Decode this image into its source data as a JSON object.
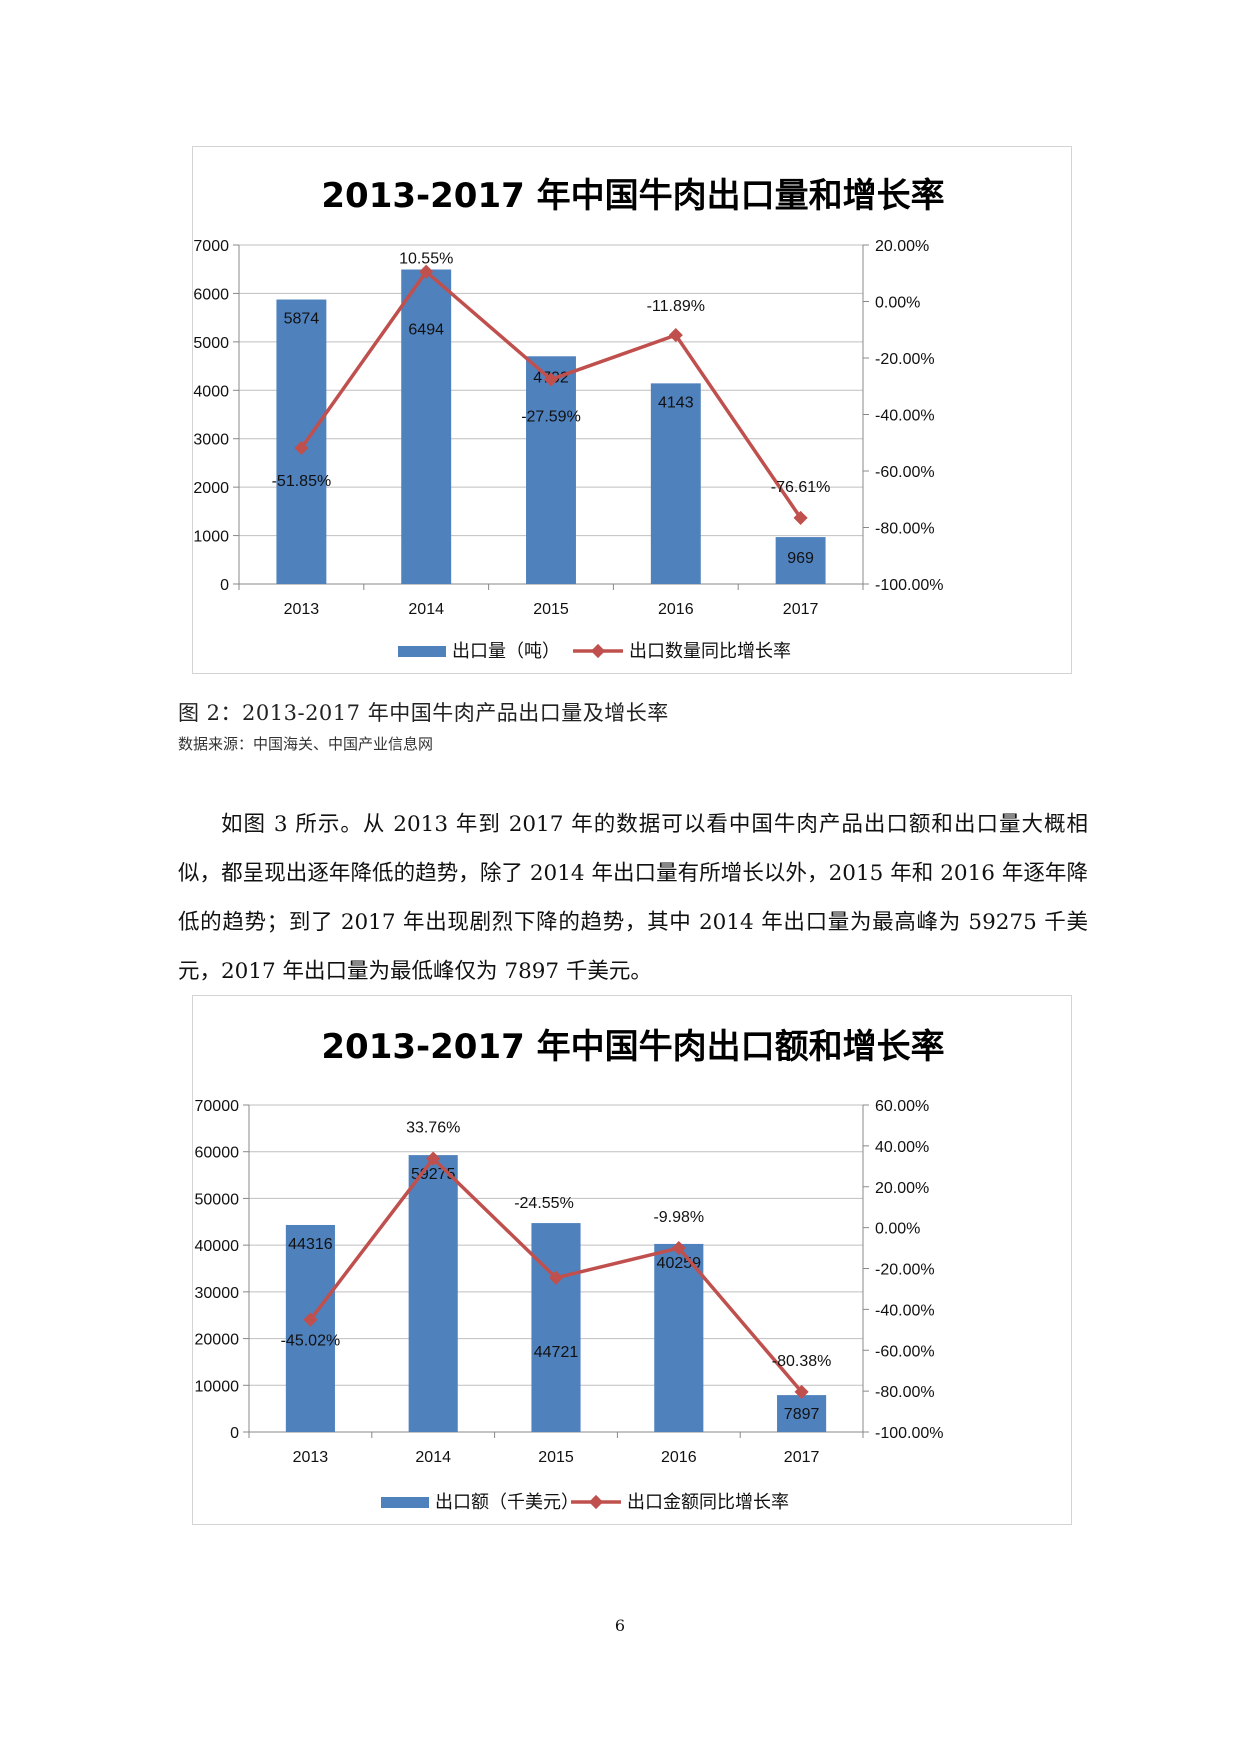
{
  "charts": [
    {
      "title": "2013-2017 年中国牛肉出口量和增长率",
      "legend": [
        "出口量（吨）",
        "出口数量同比增长率"
      ]
    },
    {
      "title": "2013-2017 年中国牛肉出口额和增长率",
      "legend": [
        "出口额（千美元）",
        "出口金额同比增长率"
      ]
    }
  ],
  "chart_data": [
    {
      "type": "bar",
      "title": "2013-2017 年中国牛肉出口量和增长率",
      "categories": [
        "2013",
        "2014",
        "2015",
        "2016",
        "2017"
      ],
      "series": [
        {
          "name": "出口量（吨）",
          "type": "bar",
          "axis": "left",
          "values": [
            5874,
            6494,
            4702,
            4143,
            969
          ],
          "labels": [
            "5874",
            "6494",
            "4702",
            "4143",
            "969"
          ],
          "color": "#4f81bd"
        },
        {
          "name": "出口数量同比增长率",
          "type": "line",
          "axis": "right",
          "values": [
            -51.85,
            10.55,
            -27.59,
            -11.89,
            -76.61
          ],
          "labels": [
            "-51.85%",
            "10.55%",
            "-27.59%",
            "-11.89%",
            "-76.61%"
          ],
          "color": "#c0504d"
        }
      ],
      "y_left": {
        "min": 0,
        "max": 7000,
        "step": 1000,
        "ticks": [
          "0",
          "1000",
          "2000",
          "3000",
          "4000",
          "5000",
          "6000",
          "7000"
        ]
      },
      "y_right": {
        "min": -100,
        "max": 20,
        "step": 20,
        "ticks": [
          "-100.00%",
          "-80.00%",
          "-60.00%",
          "-40.00%",
          "-20.00%",
          "0.00%",
          "20.00%"
        ]
      },
      "grid": true,
      "legend_position": "bottom"
    },
    {
      "type": "bar",
      "title": "2013-2017 年中国牛肉出口额和增长率",
      "categories": [
        "2013",
        "2014",
        "2015",
        "2016",
        "2017"
      ],
      "series": [
        {
          "name": "出口额（千美元）",
          "type": "bar",
          "axis": "left",
          "values": [
            44316,
            59275,
            44721,
            40259,
            7897
          ],
          "labels": [
            "44316",
            "59275",
            "44721",
            "40259",
            "7897"
          ],
          "color": "#4f81bd"
        },
        {
          "name": "出口金额同比增长率",
          "type": "line",
          "axis": "right",
          "values": [
            -45.02,
            33.76,
            -24.55,
            -9.98,
            -80.38
          ],
          "labels": [
            "-45.02%",
            "33.76%",
            "-24.55%",
            "-9.98%",
            "-80.38%"
          ],
          "color": "#c0504d"
        }
      ],
      "y_left": {
        "min": 0,
        "max": 70000,
        "step": 10000,
        "ticks": [
          "0",
          "10000",
          "20000",
          "30000",
          "40000",
          "50000",
          "60000",
          "70000"
        ]
      },
      "y_right": {
        "min": -100,
        "max": 60,
        "step": 20,
        "ticks": [
          "-100.00%",
          "-80.00%",
          "-60.00%",
          "-40.00%",
          "-20.00%",
          "0.00%",
          "20.00%",
          "40.00%",
          "60.00%"
        ]
      },
      "grid": true,
      "legend_position": "bottom"
    }
  ],
  "caption": "图 2：2013-2017 年中国牛肉产品出口量及增长率",
  "source": "数据来源：中国海关、中国产业信息网",
  "paragraph": "如图 3 所示。从 2013 年到 2017 年的数据可以看中国牛肉产品出口额和出口量大概相似，都呈现出逐年降低的趋势，除了 2014 年出口量有所增长以外，2015 年和 2016 年逐年降低的趋势；到了 2017 年出现剧烈下降的趋势，其中 2014 年出口量为最高峰为 59275 千美元，2017 年出口量为最低峰仅为 7897 千美元。",
  "page_number": "6"
}
